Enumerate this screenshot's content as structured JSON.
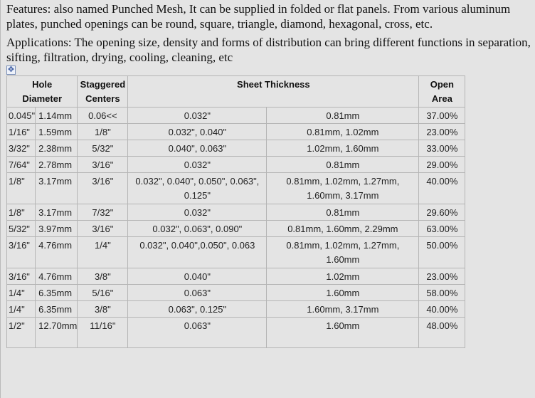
{
  "features_text": "Features:  also named Punched Mesh, It can be supplied in folded or flat panels. From various aluminum plates, punched openings can be round, square, triangle, diamond, hexagonal, cross, etc.",
  "applications_text": "Applications: The opening size, density and forms of distribution can bring different functions in separation, sifting, filtration, drying, cooling, cleaning, etc",
  "table": {
    "headers": {
      "hole_diameter": [
        "Hole",
        "Diameter"
      ],
      "staggered_centers": [
        "Staggered",
        "Centers"
      ],
      "sheet_thickness": "Sheet Thickness",
      "open_area": [
        "Open",
        "Area"
      ]
    },
    "rows": [
      {
        "hole_in": "0.045\"",
        "hole_mm": "1.14mm",
        "centers": "0.06<<",
        "thick_in": [
          "0.032\""
        ],
        "thick_mm": [
          "0.81mm"
        ],
        "open_area": "37.00%"
      },
      {
        "hole_in": "1/16\"",
        "hole_mm": "1.59mm",
        "centers": "1/8\"",
        "thick_in": [
          "0.032\", 0.040\""
        ],
        "thick_mm": [
          "0.81mm, 1.02mm"
        ],
        "open_area": "23.00%"
      },
      {
        "hole_in": "3/32\"",
        "hole_mm": "2.38mm",
        "centers": "5/32\"",
        "thick_in": [
          "0.040\", 0.063\""
        ],
        "thick_mm": [
          "1.02mm, 1.60mm"
        ],
        "open_area": "33.00%"
      },
      {
        "hole_in": "7/64\"",
        "hole_mm": "2.78mm",
        "centers": "3/16\"",
        "thick_in": [
          "0.032\""
        ],
        "thick_mm": [
          "0.81mm"
        ],
        "open_area": "29.00%"
      },
      {
        "hole_in": "1/8\"",
        "hole_mm": "3.17mm",
        "centers": "3/16\"",
        "thick_in": [
          "0.032\", 0.040\", 0.050\", 0.063\",",
          "0.125\""
        ],
        "thick_mm": [
          "0.81mm, 1.02mm, 1.27mm,",
          "1.60mm, 3.17mm"
        ],
        "open_area": "40.00%"
      },
      {
        "hole_in": "1/8\"",
        "hole_mm": "3.17mm",
        "centers": "7/32\"",
        "thick_in": [
          "0.032\""
        ],
        "thick_mm": [
          "0.81mm"
        ],
        "open_area": "29.60%"
      },
      {
        "hole_in": "5/32\"",
        "hole_mm": "3.97mm",
        "centers": "3/16\"",
        "thick_in": [
          "0.032\", 0.063\", 0.090\""
        ],
        "thick_mm": [
          "0.81mm, 1.60mm, 2.29mm"
        ],
        "open_area": "63.00%"
      },
      {
        "hole_in": "3/16\"",
        "hole_mm": "4.76mm",
        "centers": "1/4\"",
        "thick_in": [
          "0.032\", 0.040\",0.050\", 0.063"
        ],
        "thick_mm": [
          "0.81mm, 1.02mm, 1.27mm,",
          "1.60mm"
        ],
        "open_area": "50.00%"
      },
      {
        "hole_in": "3/16\"",
        "hole_mm": "4.76mm",
        "centers": "3/8\"",
        "thick_in": [
          "0.040\""
        ],
        "thick_mm": [
          "1.02mm"
        ],
        "open_area": "23.00%"
      },
      {
        "hole_in": "1/4\"",
        "hole_mm": "6.35mm",
        "centers": "5/16\"",
        "thick_in": [
          "0.063\""
        ],
        "thick_mm": [
          "1.60mm"
        ],
        "open_area": "58.00%"
      },
      {
        "hole_in": "1/4\"",
        "hole_mm": "6.35mm",
        "centers": "3/8\"",
        "thick_in": [
          "0.063\", 0.125\""
        ],
        "thick_mm": [
          "1.60mm, 3.17mm"
        ],
        "open_area": "40.00%"
      },
      {
        "hole_in": "1/2\"",
        "hole_mm": "12.70mm",
        "centers": "11/16\"",
        "thick_in": [
          "0.063\""
        ],
        "thick_mm": [
          "1.60mm"
        ],
        "open_area": "48.00%"
      }
    ]
  }
}
